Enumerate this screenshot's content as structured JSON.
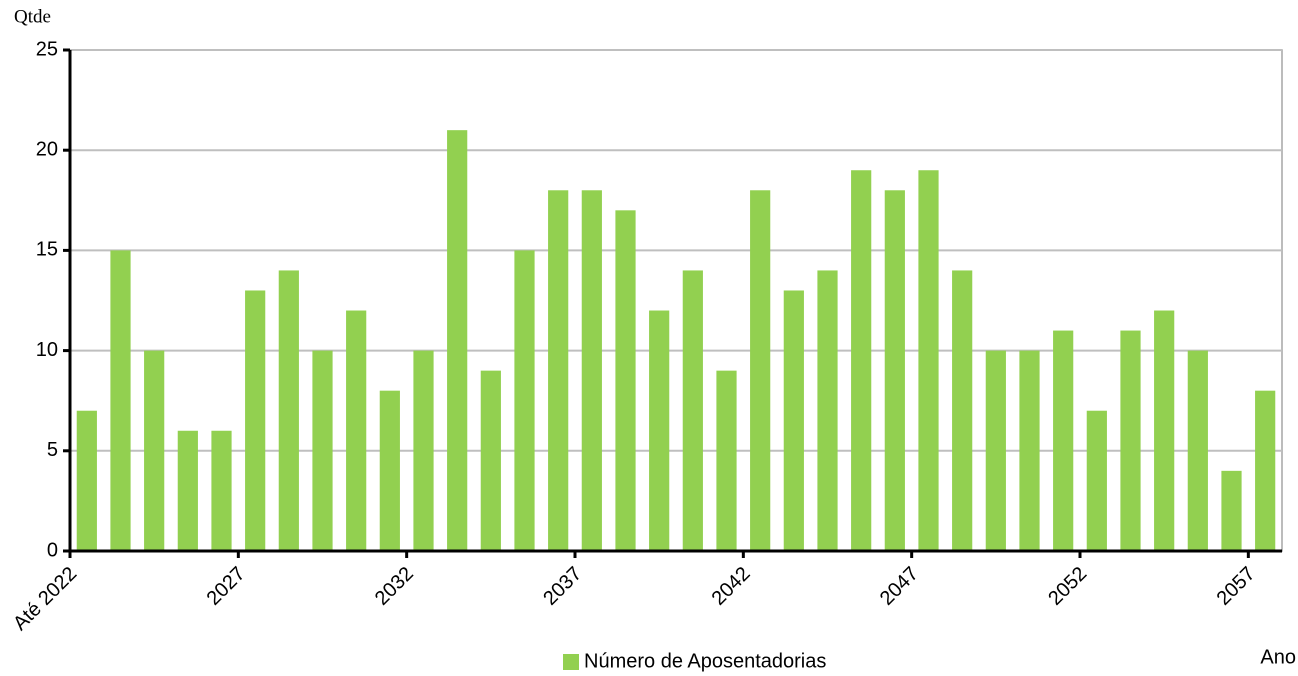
{
  "chart_data": {
    "type": "bar",
    "y_axis_label": "Qtde",
    "x_axis_label": "Ano",
    "categories": [
      "Até 2022",
      null,
      null,
      null,
      null,
      "2027",
      null,
      null,
      null,
      null,
      "2032",
      null,
      null,
      null,
      null,
      "2037",
      null,
      null,
      null,
      null,
      "2042",
      null,
      null,
      null,
      null,
      "2047",
      null,
      null,
      null,
      null,
      "2052",
      null,
      null,
      null,
      null,
      "2057"
    ],
    "series": [
      {
        "name": "Número de Aposentadorias",
        "color": "#92d050",
        "values": [
          7,
          15,
          10,
          6,
          6,
          13,
          14,
          10,
          12,
          8,
          10,
          21,
          9,
          15,
          18,
          18,
          17,
          12,
          14,
          9,
          18,
          13,
          14,
          19,
          18,
          19,
          14,
          10,
          10,
          11,
          7,
          11,
          12,
          10,
          4,
          8
        ]
      }
    ],
    "ylim": [
      0,
      25
    ],
    "yticks": [
      0,
      5,
      10,
      15,
      20,
      25
    ],
    "grid": true
  }
}
